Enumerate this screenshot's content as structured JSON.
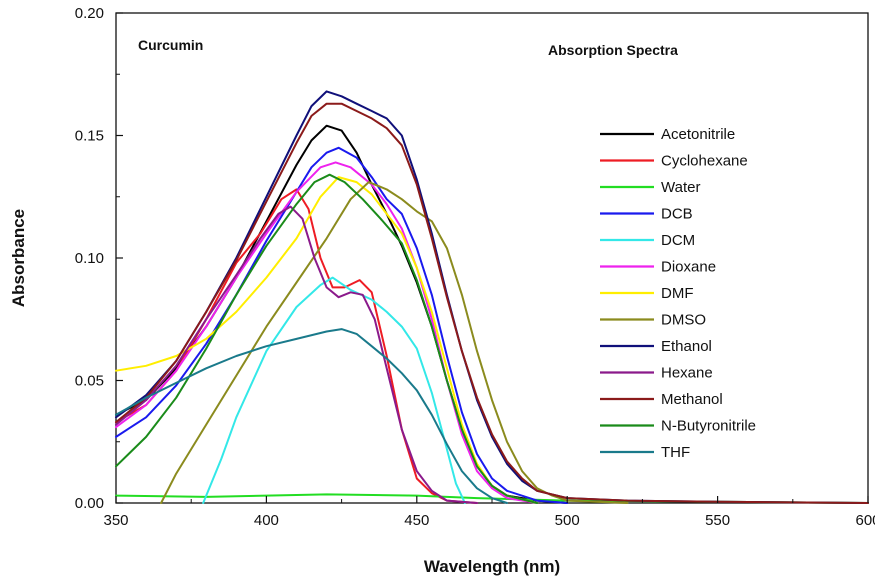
{
  "chart_data": {
    "type": "line",
    "xlabel": "Wavelength (nm)",
    "ylabel": "Absorbance",
    "xlim": [
      350,
      600
    ],
    "ylim": [
      0.0,
      0.2
    ],
    "x_ticks": [
      "350",
      "400",
      "450",
      "500",
      "550",
      "600"
    ],
    "y_ticks": [
      "0.00",
      "0.05",
      "0.10",
      "0.15",
      "0.20"
    ],
    "annotations": [
      "Curcumin",
      "Absorption Spectra"
    ],
    "legend_position": "right",
    "grid": false,
    "series": [
      {
        "name": "Acetonitrile",
        "color": "#000000",
        "points": [
          [
            350,
            0.036
          ],
          [
            360,
            0.042
          ],
          [
            370,
            0.055
          ],
          [
            380,
            0.072
          ],
          [
            390,
            0.092
          ],
          [
            400,
            0.115
          ],
          [
            410,
            0.138
          ],
          [
            415,
            0.148
          ],
          [
            420,
            0.154
          ],
          [
            425,
            0.152
          ],
          [
            430,
            0.143
          ],
          [
            435,
            0.13
          ],
          [
            440,
            0.118
          ],
          [
            445,
            0.105
          ],
          [
            450,
            0.09
          ],
          [
            455,
            0.072
          ],
          [
            460,
            0.05
          ],
          [
            465,
            0.03
          ],
          [
            470,
            0.015
          ],
          [
            475,
            0.007
          ],
          [
            480,
            0.003
          ],
          [
            490,
            0.001
          ],
          [
            500,
            0.0
          ]
        ]
      },
      {
        "name": "Cyclohexane",
        "color": "#ee1c24",
        "points": [
          [
            350,
            0.033
          ],
          [
            360,
            0.04
          ],
          [
            370,
            0.054
          ],
          [
            380,
            0.075
          ],
          [
            390,
            0.098
          ],
          [
            398,
            0.11
          ],
          [
            405,
            0.124
          ],
          [
            410,
            0.128
          ],
          [
            414,
            0.12
          ],
          [
            418,
            0.1
          ],
          [
            422,
            0.088
          ],
          [
            426,
            0.088
          ],
          [
            431,
            0.091
          ],
          [
            435,
            0.086
          ],
          [
            440,
            0.06
          ],
          [
            445,
            0.03
          ],
          [
            450,
            0.01
          ],
          [
            455,
            0.004
          ],
          [
            460,
            0.001
          ],
          [
            470,
            0.0
          ]
        ]
      },
      {
        "name": "Water",
        "color": "#22dd22",
        "points": [
          [
            350,
            0.003
          ],
          [
            380,
            0.0025
          ],
          [
            420,
            0.0035
          ],
          [
            450,
            0.003
          ],
          [
            470,
            0.002
          ],
          [
            500,
            0.001
          ],
          [
            550,
            0.0005
          ],
          [
            600,
            0.0
          ]
        ]
      },
      {
        "name": "DCB",
        "color": "#1a1aee",
        "points": [
          [
            350,
            0.027
          ],
          [
            360,
            0.035
          ],
          [
            370,
            0.048
          ],
          [
            380,
            0.065
          ],
          [
            390,
            0.085
          ],
          [
            400,
            0.107
          ],
          [
            410,
            0.127
          ],
          [
            415,
            0.137
          ],
          [
            420,
            0.143
          ],
          [
            424,
            0.145
          ],
          [
            430,
            0.141
          ],
          [
            435,
            0.133
          ],
          [
            440,
            0.124
          ],
          [
            445,
            0.118
          ],
          [
            450,
            0.104
          ],
          [
            455,
            0.085
          ],
          [
            460,
            0.06
          ],
          [
            465,
            0.037
          ],
          [
            470,
            0.02
          ],
          [
            475,
            0.01
          ],
          [
            480,
            0.005
          ],
          [
            490,
            0.001
          ],
          [
            500,
            0.0
          ]
        ]
      },
      {
        "name": "DCM",
        "color": "#33e8e8",
        "points": [
          [
            379,
            0.0
          ],
          [
            385,
            0.018
          ],
          [
            390,
            0.035
          ],
          [
            400,
            0.062
          ],
          [
            410,
            0.08
          ],
          [
            418,
            0.089
          ],
          [
            422,
            0.092
          ],
          [
            428,
            0.087
          ],
          [
            435,
            0.083
          ],
          [
            440,
            0.078
          ],
          [
            445,
            0.072
          ],
          [
            450,
            0.063
          ],
          [
            455,
            0.045
          ],
          [
            460,
            0.022
          ],
          [
            463,
            0.008
          ],
          [
            466,
            0.0
          ]
        ]
      },
      {
        "name": "Dioxane",
        "color": "#ee22ee",
        "points": [
          [
            350,
            0.031
          ],
          [
            360,
            0.04
          ],
          [
            370,
            0.054
          ],
          [
            380,
            0.072
          ],
          [
            390,
            0.092
          ],
          [
            400,
            0.11
          ],
          [
            410,
            0.127
          ],
          [
            418,
            0.137
          ],
          [
            423,
            0.139
          ],
          [
            428,
            0.137
          ],
          [
            435,
            0.13
          ],
          [
            440,
            0.122
          ],
          [
            445,
            0.112
          ],
          [
            450,
            0.096
          ],
          [
            455,
            0.075
          ],
          [
            460,
            0.05
          ],
          [
            465,
            0.028
          ],
          [
            470,
            0.013
          ],
          [
            475,
            0.006
          ],
          [
            480,
            0.002
          ],
          [
            490,
            0.0
          ]
        ]
      },
      {
        "name": "DMF",
        "color": "#ffee00",
        "points": [
          [
            350,
            0.054
          ],
          [
            360,
            0.056
          ],
          [
            370,
            0.06
          ],
          [
            380,
            0.067
          ],
          [
            390,
            0.078
          ],
          [
            400,
            0.092
          ],
          [
            410,
            0.108
          ],
          [
            418,
            0.125
          ],
          [
            424,
            0.133
          ],
          [
            430,
            0.131
          ],
          [
            435,
            0.126
          ],
          [
            440,
            0.118
          ],
          [
            445,
            0.11
          ],
          [
            450,
            0.096
          ],
          [
            455,
            0.078
          ],
          [
            460,
            0.055
          ],
          [
            465,
            0.032
          ],
          [
            470,
            0.016
          ],
          [
            475,
            0.007
          ],
          [
            480,
            0.003
          ],
          [
            490,
            0.0
          ]
        ]
      },
      {
        "name": "DMSO",
        "color": "#8b8b1e",
        "points": [
          [
            365,
            0.0
          ],
          [
            370,
            0.012
          ],
          [
            380,
            0.032
          ],
          [
            390,
            0.052
          ],
          [
            400,
            0.072
          ],
          [
            410,
            0.09
          ],
          [
            420,
            0.108
          ],
          [
            428,
            0.124
          ],
          [
            434,
            0.131
          ],
          [
            440,
            0.128
          ],
          [
            445,
            0.124
          ],
          [
            450,
            0.119
          ],
          [
            455,
            0.115
          ],
          [
            460,
            0.104
          ],
          [
            465,
            0.085
          ],
          [
            470,
            0.062
          ],
          [
            475,
            0.042
          ],
          [
            480,
            0.025
          ],
          [
            485,
            0.013
          ],
          [
            490,
            0.006
          ],
          [
            495,
            0.003
          ],
          [
            500,
            0.001
          ],
          [
            520,
            0.0
          ]
        ]
      },
      {
        "name": "Ethanol",
        "color": "#10107a",
        "points": [
          [
            350,
            0.035
          ],
          [
            360,
            0.044
          ],
          [
            370,
            0.058
          ],
          [
            380,
            0.078
          ],
          [
            390,
            0.1
          ],
          [
            400,
            0.125
          ],
          [
            410,
            0.15
          ],
          [
            415,
            0.162
          ],
          [
            420,
            0.168
          ],
          [
            425,
            0.166
          ],
          [
            430,
            0.163
          ],
          [
            435,
            0.16
          ],
          [
            440,
            0.157
          ],
          [
            445,
            0.15
          ],
          [
            450,
            0.132
          ],
          [
            455,
            0.11
          ],
          [
            460,
            0.085
          ],
          [
            465,
            0.062
          ],
          [
            470,
            0.042
          ],
          [
            475,
            0.027
          ],
          [
            480,
            0.016
          ],
          [
            485,
            0.009
          ],
          [
            490,
            0.005
          ],
          [
            500,
            0.002
          ],
          [
            520,
            0.001
          ],
          [
            550,
            0.0005
          ],
          [
            600,
            0.0
          ]
        ]
      },
      {
        "name": "Hexane",
        "color": "#8b1a8b",
        "points": [
          [
            350,
            0.032
          ],
          [
            360,
            0.042
          ],
          [
            370,
            0.056
          ],
          [
            380,
            0.075
          ],
          [
            390,
            0.093
          ],
          [
            398,
            0.108
          ],
          [
            404,
            0.118
          ],
          [
            408,
            0.121
          ],
          [
            412,
            0.116
          ],
          [
            416,
            0.1
          ],
          [
            420,
            0.088
          ],
          [
            424,
            0.084
          ],
          [
            428,
            0.086
          ],
          [
            432,
            0.085
          ],
          [
            436,
            0.075
          ],
          [
            440,
            0.055
          ],
          [
            445,
            0.03
          ],
          [
            450,
            0.013
          ],
          [
            455,
            0.005
          ],
          [
            460,
            0.001
          ],
          [
            470,
            0.0
          ]
        ]
      },
      {
        "name": "Methanol",
        "color": "#8b1a1a",
        "points": [
          [
            350,
            0.033
          ],
          [
            360,
            0.043
          ],
          [
            370,
            0.058
          ],
          [
            380,
            0.078
          ],
          [
            390,
            0.099
          ],
          [
            400,
            0.123
          ],
          [
            410,
            0.147
          ],
          [
            415,
            0.158
          ],
          [
            420,
            0.163
          ],
          [
            425,
            0.163
          ],
          [
            430,
            0.16
          ],
          [
            435,
            0.157
          ],
          [
            440,
            0.153
          ],
          [
            445,
            0.146
          ],
          [
            450,
            0.13
          ],
          [
            455,
            0.108
          ],
          [
            460,
            0.084
          ],
          [
            465,
            0.062
          ],
          [
            470,
            0.043
          ],
          [
            475,
            0.028
          ],
          [
            480,
            0.017
          ],
          [
            485,
            0.01
          ],
          [
            490,
            0.005
          ],
          [
            500,
            0.002
          ],
          [
            520,
            0.001
          ],
          [
            550,
            0.0005
          ],
          [
            600,
            0.0
          ]
        ]
      },
      {
        "name": "N-Butyronitrile",
        "color": "#1a8b1a",
        "points": [
          [
            350,
            0.015
          ],
          [
            360,
            0.027
          ],
          [
            370,
            0.043
          ],
          [
            380,
            0.063
          ],
          [
            390,
            0.085
          ],
          [
            400,
            0.105
          ],
          [
            410,
            0.122
          ],
          [
            416,
            0.131
          ],
          [
            421,
            0.134
          ],
          [
            426,
            0.131
          ],
          [
            432,
            0.124
          ],
          [
            438,
            0.116
          ],
          [
            445,
            0.106
          ],
          [
            450,
            0.091
          ],
          [
            455,
            0.072
          ],
          [
            460,
            0.05
          ],
          [
            465,
            0.03
          ],
          [
            470,
            0.015
          ],
          [
            475,
            0.007
          ],
          [
            480,
            0.003
          ],
          [
            490,
            0.0
          ]
        ]
      },
      {
        "name": "THF",
        "color": "#1a7a8b",
        "points": [
          [
            350,
            0.036
          ],
          [
            360,
            0.043
          ],
          [
            370,
            0.049
          ],
          [
            380,
            0.055
          ],
          [
            390,
            0.06
          ],
          [
            400,
            0.064
          ],
          [
            410,
            0.067
          ],
          [
            420,
            0.07
          ],
          [
            425,
            0.071
          ],
          [
            430,
            0.069
          ],
          [
            435,
            0.064
          ],
          [
            440,
            0.059
          ],
          [
            445,
            0.053
          ],
          [
            450,
            0.046
          ],
          [
            455,
            0.036
          ],
          [
            460,
            0.024
          ],
          [
            465,
            0.013
          ],
          [
            470,
            0.006
          ],
          [
            475,
            0.002
          ],
          [
            480,
            0.0
          ]
        ]
      }
    ]
  }
}
